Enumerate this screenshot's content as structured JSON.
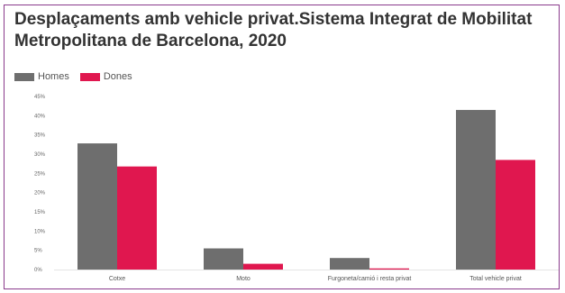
{
  "chart_data": {
    "type": "bar",
    "title": "Desplaçaments amb vehicle privat.Sistema Integrat de Mobilitat Metropolitana de Barcelona, 2020",
    "categories": [
      "Cotxe",
      "Moto",
      "Furgoneta/camió i resta privat",
      "Total vehicle privat"
    ],
    "series": [
      {
        "name": "Homes",
        "color": "#6e6e6e",
        "values": [
          32.8,
          5.5,
          3.0,
          41.5
        ]
      },
      {
        "name": "Dones",
        "color": "#e0174f",
        "values": [
          26.8,
          1.5,
          0.3,
          28.5
        ]
      }
    ],
    "ylim": [
      0,
      45
    ],
    "yticks": [
      0,
      5,
      10,
      15,
      20,
      25,
      30,
      35,
      40,
      45
    ],
    "ytick_labels": [
      "0%",
      "5%",
      "10%",
      "15%",
      "20%",
      "25%",
      "30%",
      "35%",
      "40%",
      "45%"
    ],
    "grid": false,
    "legend": "top-left"
  }
}
